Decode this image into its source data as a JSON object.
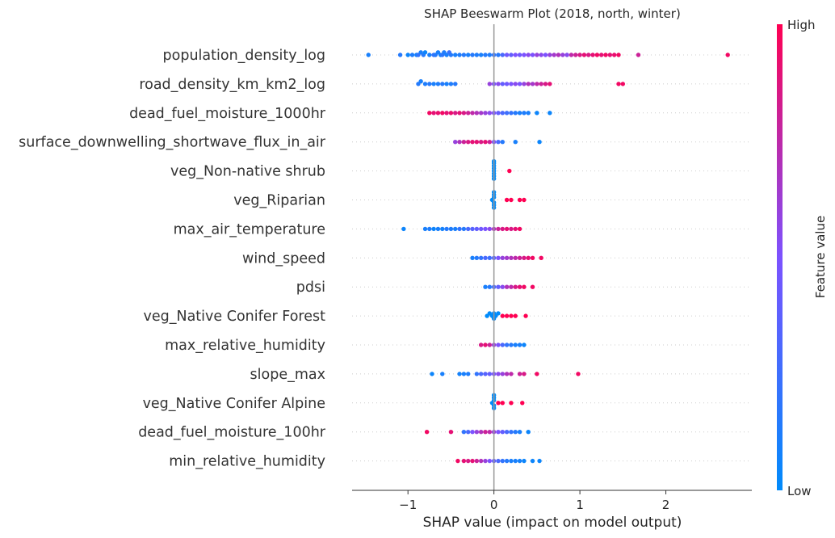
{
  "chart_data": {
    "type": "scatter",
    "subtype": "shap-beeswarm",
    "title": "SHAP Beeswarm Plot (2018, north, winter)",
    "xlabel": "SHAP value (impact on model output)",
    "xlim": [
      -1.65,
      3.0
    ],
    "xticks": [
      {
        "value": -1,
        "label": "−1"
      },
      {
        "value": 0,
        "label": "0"
      },
      {
        "value": 1,
        "label": "1"
      },
      {
        "value": 2,
        "label": "2"
      }
    ],
    "colorbar": {
      "label": "Feature value",
      "high": "High",
      "low": "Low",
      "low_color": "#008bfb",
      "mid_color": "#7c52ff",
      "high_color": "#ff0052"
    },
    "zero_line_color": "#999999",
    "grid": false,
    "features": [
      {
        "name": "population_density_log",
        "points": [
          [
            -1.46,
            0.1
          ],
          [
            -1.09,
            0.15
          ],
          [
            -1.0,
            0.05
          ],
          [
            -0.95,
            0.12
          ],
          [
            -0.9,
            0.08
          ],
          [
            -0.88,
            0.2
          ],
          [
            -0.85,
            0.1
          ],
          [
            -0.82,
            0.15
          ],
          [
            -0.8,
            0.05
          ],
          [
            -0.75,
            0.1
          ],
          [
            -0.7,
            0.2
          ],
          [
            -0.68,
            0.15
          ],
          [
            -0.65,
            0.1
          ],
          [
            -0.62,
            0.08
          ],
          [
            -0.6,
            0.18
          ],
          [
            -0.58,
            0.12
          ],
          [
            -0.55,
            0.1
          ],
          [
            -0.52,
            0.22
          ],
          [
            -0.5,
            0.15
          ],
          [
            -0.45,
            0.1
          ],
          [
            -0.4,
            0.12
          ],
          [
            -0.35,
            0.15
          ],
          [
            -0.3,
            0.1
          ],
          [
            -0.25,
            0.15
          ],
          [
            -0.2,
            0.12
          ],
          [
            -0.15,
            0.1
          ],
          [
            -0.1,
            0.15
          ],
          [
            -0.05,
            0.12
          ],
          [
            0.0,
            0.2
          ],
          [
            0.05,
            0.15
          ],
          [
            0.1,
            0.3
          ],
          [
            0.15,
            0.45
          ],
          [
            0.2,
            0.4
          ],
          [
            0.25,
            0.5
          ],
          [
            0.3,
            0.45
          ],
          [
            0.35,
            0.5
          ],
          [
            0.4,
            0.55
          ],
          [
            0.45,
            0.5
          ],
          [
            0.5,
            0.6
          ],
          [
            0.55,
            0.55
          ],
          [
            0.6,
            0.5
          ],
          [
            0.65,
            0.6
          ],
          [
            0.7,
            0.65
          ],
          [
            0.75,
            0.7
          ],
          [
            0.8,
            0.6
          ],
          [
            0.85,
            0.55
          ],
          [
            0.9,
            0.75
          ],
          [
            0.95,
            0.8
          ],
          [
            1.0,
            0.85
          ],
          [
            1.05,
            0.9
          ],
          [
            1.1,
            0.85
          ],
          [
            1.15,
            0.9
          ],
          [
            1.2,
            0.95
          ],
          [
            1.25,
            0.9
          ],
          [
            1.3,
            0.95
          ],
          [
            1.35,
            0.9
          ],
          [
            1.4,
            0.92
          ],
          [
            1.45,
            0.95
          ],
          [
            1.68,
            0.8
          ],
          [
            2.72,
            0.95
          ]
        ]
      },
      {
        "name": "road_density_km_km2_log",
        "points": [
          [
            -0.88,
            0.15
          ],
          [
            -0.85,
            0.1
          ],
          [
            -0.8,
            0.12
          ],
          [
            -0.75,
            0.15
          ],
          [
            -0.7,
            0.1
          ],
          [
            -0.65,
            0.12
          ],
          [
            -0.6,
            0.15
          ],
          [
            -0.55,
            0.1
          ],
          [
            -0.5,
            0.12
          ],
          [
            -0.45,
            0.15
          ],
          [
            -0.05,
            0.6
          ],
          [
            0.0,
            0.5
          ],
          [
            0.05,
            0.55
          ],
          [
            0.1,
            0.4
          ],
          [
            0.15,
            0.45
          ],
          [
            0.2,
            0.5
          ],
          [
            0.25,
            0.55
          ],
          [
            0.3,
            0.5
          ],
          [
            0.35,
            0.6
          ],
          [
            0.4,
            0.7
          ],
          [
            0.45,
            0.65
          ],
          [
            0.5,
            0.75
          ],
          [
            0.55,
            0.8
          ],
          [
            0.6,
            0.85
          ],
          [
            0.65,
            0.9
          ],
          [
            1.45,
            0.95
          ],
          [
            1.5,
            0.95
          ]
        ]
      },
      {
        "name": "dead_fuel_moisture_1000hr",
        "points": [
          [
            -0.75,
            0.95
          ],
          [
            -0.7,
            0.9
          ],
          [
            -0.65,
            0.92
          ],
          [
            -0.6,
            0.95
          ],
          [
            -0.55,
            0.9
          ],
          [
            -0.5,
            0.92
          ],
          [
            -0.45,
            0.85
          ],
          [
            -0.4,
            0.9
          ],
          [
            -0.35,
            0.85
          ],
          [
            -0.3,
            0.8
          ],
          [
            -0.25,
            0.75
          ],
          [
            -0.2,
            0.7
          ],
          [
            -0.15,
            0.65
          ],
          [
            -0.1,
            0.6
          ],
          [
            -0.05,
            0.55
          ],
          [
            0.0,
            0.5
          ],
          [
            0.05,
            0.4
          ],
          [
            0.1,
            0.3
          ],
          [
            0.15,
            0.25
          ],
          [
            0.2,
            0.2
          ],
          [
            0.25,
            0.15
          ],
          [
            0.3,
            0.1
          ],
          [
            0.35,
            0.12
          ],
          [
            0.4,
            0.1
          ],
          [
            0.5,
            0.05
          ],
          [
            0.65,
            0.05
          ]
        ]
      },
      {
        "name": "surface_downwelling_shortwave_flux_in_air",
        "points": [
          [
            -0.45,
            0.6
          ],
          [
            -0.4,
            0.7
          ],
          [
            -0.35,
            0.8
          ],
          [
            -0.3,
            0.85
          ],
          [
            -0.25,
            0.9
          ],
          [
            -0.2,
            0.9
          ],
          [
            -0.15,
            0.85
          ],
          [
            -0.1,
            0.9
          ],
          [
            -0.05,
            0.8
          ],
          [
            0.0,
            0.5
          ],
          [
            0.05,
            0.3
          ],
          [
            0.1,
            0.15
          ],
          [
            0.25,
            0.1
          ],
          [
            0.53,
            0.05
          ]
        ]
      },
      {
        "name": "veg_Non-native shrub",
        "points": [
          [
            0.0,
            0.0
          ],
          [
            0.0,
            0.0
          ],
          [
            0.0,
            0.0
          ],
          [
            0.0,
            0.0
          ],
          [
            0.0,
            0.0
          ],
          [
            0.0,
            0.0
          ],
          [
            0.0,
            0.0
          ],
          [
            0.0,
            0.0
          ],
          [
            0.18,
            1.0
          ]
        ]
      },
      {
        "name": "veg_Riparian",
        "points": [
          [
            -0.02,
            0.0
          ],
          [
            0.0,
            0.0
          ],
          [
            0.0,
            0.0
          ],
          [
            0.0,
            0.0
          ],
          [
            0.0,
            0.0
          ],
          [
            0.0,
            0.0
          ],
          [
            0.0,
            0.0
          ],
          [
            0.15,
            1.0
          ],
          [
            0.2,
            1.0
          ],
          [
            0.3,
            1.0
          ],
          [
            0.35,
            1.0
          ]
        ]
      },
      {
        "name": "max_air_temperature",
        "points": [
          [
            -1.05,
            0.05
          ],
          [
            -0.8,
            0.1
          ],
          [
            -0.75,
            0.12
          ],
          [
            -0.7,
            0.05
          ],
          [
            -0.65,
            0.1
          ],
          [
            -0.6,
            0.08
          ],
          [
            -0.55,
            0.15
          ],
          [
            -0.5,
            0.12
          ],
          [
            -0.45,
            0.1
          ],
          [
            -0.4,
            0.2
          ],
          [
            -0.35,
            0.15
          ],
          [
            -0.3,
            0.3
          ],
          [
            -0.25,
            0.35
          ],
          [
            -0.2,
            0.4
          ],
          [
            -0.15,
            0.45
          ],
          [
            -0.1,
            0.5
          ],
          [
            -0.05,
            0.55
          ],
          [
            0.0,
            0.7
          ],
          [
            0.05,
            0.8
          ],
          [
            0.1,
            0.85
          ],
          [
            0.15,
            0.9
          ],
          [
            0.2,
            0.85
          ],
          [
            0.25,
            0.9
          ],
          [
            0.3,
            0.95
          ]
        ]
      },
      {
        "name": "wind_speed",
        "points": [
          [
            -0.25,
            0.1
          ],
          [
            -0.2,
            0.15
          ],
          [
            -0.15,
            0.2
          ],
          [
            -0.1,
            0.3
          ],
          [
            -0.05,
            0.25
          ],
          [
            0.0,
            0.35
          ],
          [
            0.05,
            0.5
          ],
          [
            0.1,
            0.6
          ],
          [
            0.15,
            0.65
          ],
          [
            0.2,
            0.7
          ],
          [
            0.25,
            0.75
          ],
          [
            0.3,
            0.8
          ],
          [
            0.35,
            0.85
          ],
          [
            0.4,
            0.9
          ],
          [
            0.45,
            0.95
          ],
          [
            0.55,
            0.95
          ]
        ]
      },
      {
        "name": "pdsi",
        "points": [
          [
            -0.1,
            0.1
          ],
          [
            -0.05,
            0.15
          ],
          [
            0.0,
            0.3
          ],
          [
            0.05,
            0.4
          ],
          [
            0.1,
            0.55
          ],
          [
            0.15,
            0.7
          ],
          [
            0.2,
            0.75
          ],
          [
            0.25,
            0.85
          ],
          [
            0.3,
            0.9
          ],
          [
            0.35,
            0.95
          ],
          [
            0.45,
            0.95
          ]
        ]
      },
      {
        "name": "veg_Native Conifer Forest",
        "points": [
          [
            -0.08,
            0.0
          ],
          [
            -0.05,
            0.0
          ],
          [
            -0.02,
            0.0
          ],
          [
            0.0,
            0.0
          ],
          [
            0.02,
            0.0
          ],
          [
            0.0,
            0.0
          ],
          [
            0.05,
            0.0
          ],
          [
            0.1,
            1.0
          ],
          [
            0.15,
            1.0
          ],
          [
            0.2,
            1.0
          ],
          [
            0.25,
            1.0
          ],
          [
            0.37,
            1.0
          ]
        ]
      },
      {
        "name": "max_relative_humidity",
        "points": [
          [
            -0.15,
            0.85
          ],
          [
            -0.1,
            0.9
          ],
          [
            -0.05,
            0.8
          ],
          [
            0.0,
            0.6
          ],
          [
            0.05,
            0.5
          ],
          [
            0.1,
            0.3
          ],
          [
            0.15,
            0.2
          ],
          [
            0.2,
            0.15
          ],
          [
            0.25,
            0.1
          ],
          [
            0.3,
            0.1
          ],
          [
            0.35,
            0.05
          ]
        ]
      },
      {
        "name": "slope_max",
        "points": [
          [
            -0.72,
            0.05
          ],
          [
            -0.6,
            0.1
          ],
          [
            -0.4,
            0.08
          ],
          [
            -0.35,
            0.1
          ],
          [
            -0.3,
            0.12
          ],
          [
            -0.2,
            0.2
          ],
          [
            -0.15,
            0.3
          ],
          [
            -0.1,
            0.35
          ],
          [
            -0.05,
            0.4
          ],
          [
            0.0,
            0.5
          ],
          [
            0.05,
            0.55
          ],
          [
            0.1,
            0.6
          ],
          [
            0.15,
            0.7
          ],
          [
            0.2,
            0.75
          ],
          [
            0.3,
            0.8
          ],
          [
            0.35,
            0.85
          ],
          [
            0.5,
            0.95
          ],
          [
            0.98,
            0.95
          ]
        ]
      },
      {
        "name": "veg_Native Conifer Alpine",
        "points": [
          [
            -0.02,
            0.0
          ],
          [
            0.0,
            0.0
          ],
          [
            0.0,
            0.0
          ],
          [
            0.0,
            0.0
          ],
          [
            0.0,
            0.0
          ],
          [
            0.0,
            0.0
          ],
          [
            0.05,
            1.0
          ],
          [
            0.1,
            1.0
          ],
          [
            0.2,
            1.0
          ],
          [
            0.33,
            1.0
          ]
        ]
      },
      {
        "name": "dead_fuel_moisture_100hr",
        "points": [
          [
            -0.78,
            0.95
          ],
          [
            -0.5,
            0.9
          ],
          [
            -0.35,
            0.2
          ],
          [
            -0.3,
            0.3
          ],
          [
            -0.25,
            0.5
          ],
          [
            -0.2,
            0.6
          ],
          [
            -0.15,
            0.7
          ],
          [
            -0.1,
            0.8
          ],
          [
            -0.05,
            0.75
          ],
          [
            0.0,
            0.6
          ],
          [
            0.05,
            0.5
          ],
          [
            0.1,
            0.4
          ],
          [
            0.15,
            0.3
          ],
          [
            0.2,
            0.2
          ],
          [
            0.25,
            0.15
          ],
          [
            0.3,
            0.1
          ],
          [
            0.4,
            0.05
          ]
        ]
      },
      {
        "name": "min_relative_humidity",
        "points": [
          [
            -0.42,
            0.95
          ],
          [
            -0.35,
            0.9
          ],
          [
            -0.3,
            0.85
          ],
          [
            -0.25,
            0.9
          ],
          [
            -0.2,
            0.8
          ],
          [
            -0.15,
            0.7
          ],
          [
            -0.1,
            0.6
          ],
          [
            -0.05,
            0.5
          ],
          [
            0.0,
            0.4
          ],
          [
            0.05,
            0.3
          ],
          [
            0.1,
            0.2
          ],
          [
            0.15,
            0.15
          ],
          [
            0.2,
            0.1
          ],
          [
            0.25,
            0.1
          ],
          [
            0.3,
            0.08
          ],
          [
            0.35,
            0.05
          ],
          [
            0.45,
            0.05
          ],
          [
            0.53,
            0.05
          ]
        ]
      }
    ]
  }
}
